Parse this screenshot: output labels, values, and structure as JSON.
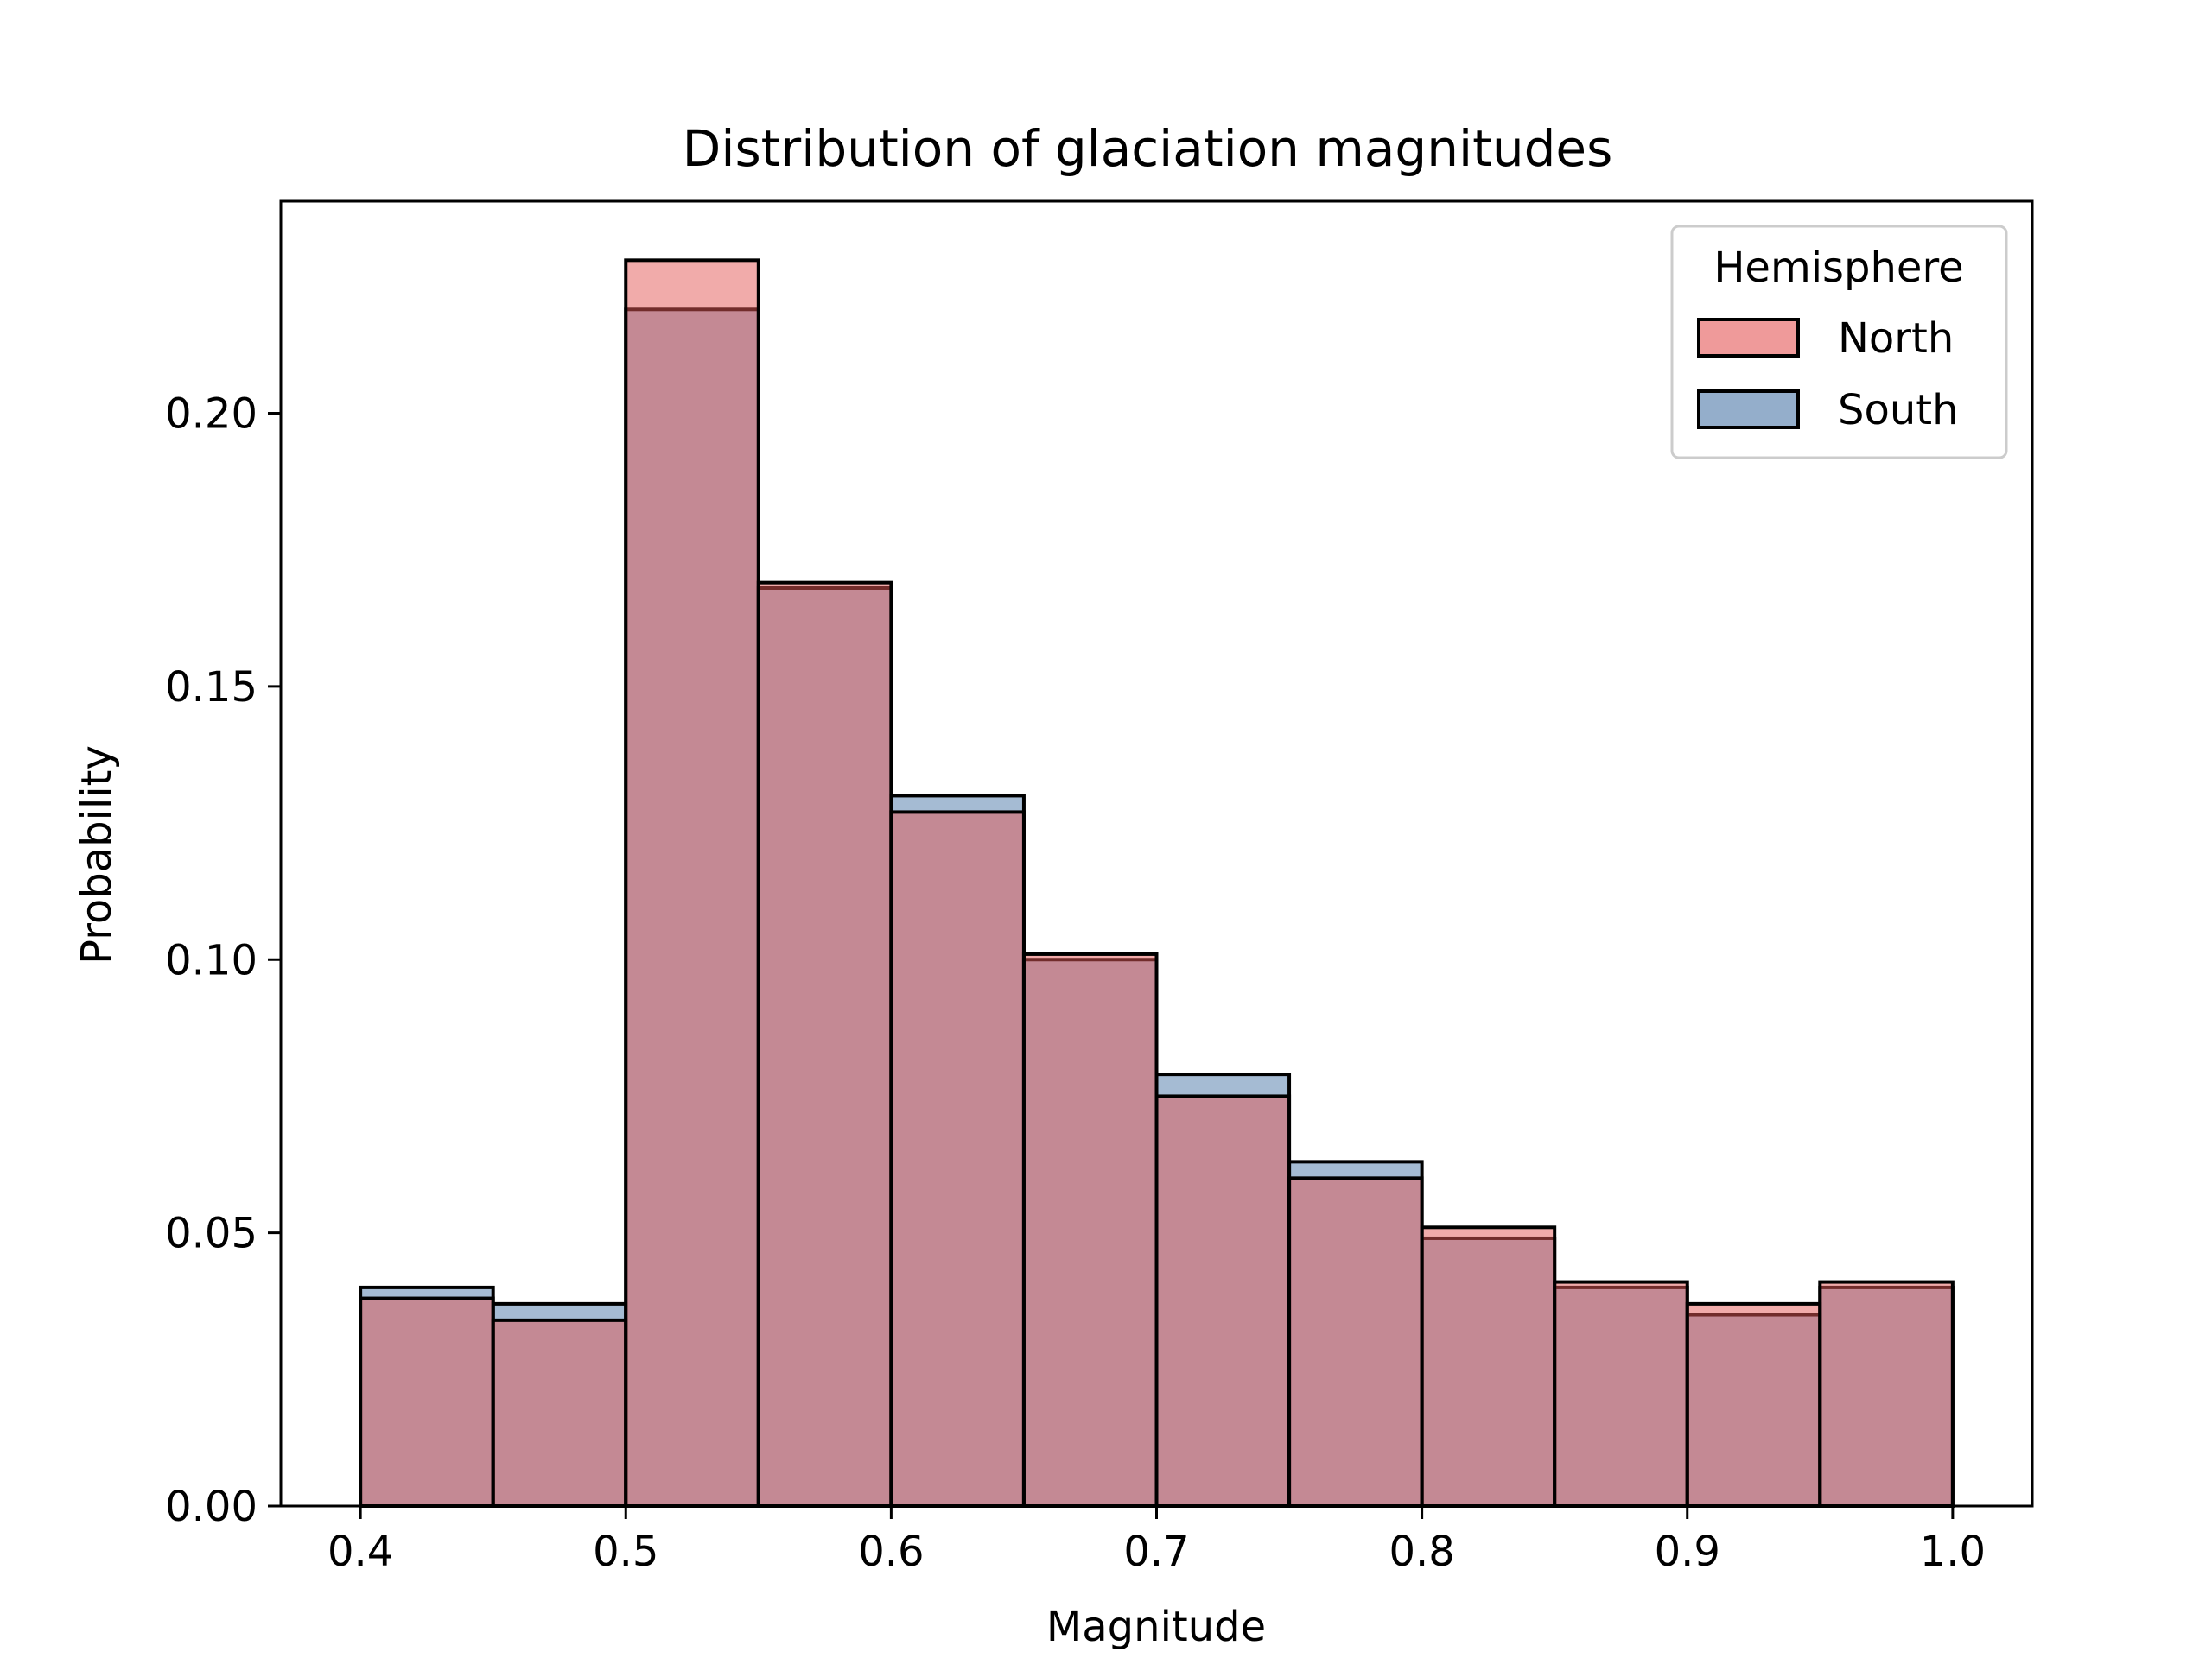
{
  "chart_data": {
    "type": "histogram",
    "title": "Distribution of glaciation magnitudes",
    "xlabel": "Magnitude",
    "ylabel": "Probability",
    "xlim": [
      0.37,
      1.03
    ],
    "ylim": [
      0,
      0.2388
    ],
    "x_ticks": [
      {
        "value": 0.4,
        "label": "0.4"
      },
      {
        "value": 0.5,
        "label": "0.5"
      },
      {
        "value": 0.6,
        "label": "0.6"
      },
      {
        "value": 0.7,
        "label": "0.7"
      },
      {
        "value": 0.8,
        "label": "0.8"
      },
      {
        "value": 0.9,
        "label": "0.9"
      },
      {
        "value": 1.0,
        "label": "1.0"
      }
    ],
    "y_ticks": [
      {
        "value": 0.0,
        "label": "0.00"
      },
      {
        "value": 0.05,
        "label": "0.05"
      },
      {
        "value": 0.1,
        "label": "0.10"
      },
      {
        "value": 0.15,
        "label": "0.15"
      },
      {
        "value": 0.2,
        "label": "0.20"
      }
    ],
    "bin_edges": [
      0.4,
      0.45,
      0.5,
      0.55,
      0.6,
      0.65,
      0.7,
      0.75,
      0.8,
      0.85,
      0.9,
      0.95,
      1.0
    ],
    "legend": {
      "title": "Hemisphere",
      "position": "top-right"
    },
    "grid": false,
    "series": [
      {
        "name": "North",
        "color": "#e45756",
        "values": [
          0.038,
          0.034,
          0.228,
          0.169,
          0.127,
          0.101,
          0.075,
          0.06,
          0.051,
          0.041,
          0.037,
          0.041
        ]
      },
      {
        "name": "South",
        "color": "#4c78a8",
        "values": [
          0.04,
          0.037,
          0.219,
          0.168,
          0.13,
          0.1,
          0.079,
          0.063,
          0.049,
          0.04,
          0.035,
          0.04
        ]
      }
    ]
  }
}
